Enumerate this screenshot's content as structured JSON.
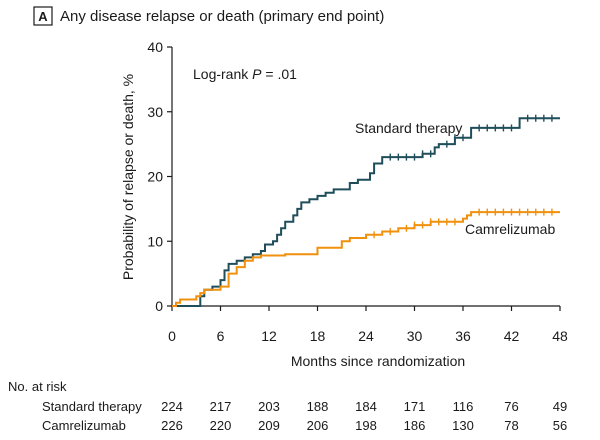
{
  "panel": {
    "letter": "A",
    "title": "Any disease relapse or death (primary end point)"
  },
  "chart_data": {
    "type": "line",
    "subtype": "kaplan-meier-cumulative-incidence",
    "title": "Any disease relapse or death (primary end point)",
    "xlabel": "Months since randomization",
    "ylabel": "Probability of relapse or death, %",
    "xlim": [
      0,
      48
    ],
    "ylim": [
      0,
      40
    ],
    "xticks": [
      0,
      6,
      12,
      18,
      24,
      30,
      36,
      42,
      48
    ],
    "yticks": [
      0,
      10,
      20,
      30,
      40
    ],
    "annotation": {
      "prefix": "Log-rank ",
      "italic": "P",
      "suffix": " = .01"
    },
    "series": [
      {
        "name": "Standard therapy",
        "color": "#1f4e5a",
        "steps": [
          [
            0,
            0
          ],
          [
            3,
            0
          ],
          [
            3.5,
            1.5
          ],
          [
            4,
            2.5
          ],
          [
            5,
            3
          ],
          [
            6,
            4
          ],
          [
            6.5,
            5.5
          ],
          [
            7,
            6.5
          ],
          [
            8,
            7
          ],
          [
            9,
            7.5
          ],
          [
            10,
            8
          ],
          [
            11,
            8.5
          ],
          [
            11.5,
            9.5
          ],
          [
            12.5,
            10
          ],
          [
            13,
            11
          ],
          [
            13.5,
            12
          ],
          [
            14,
            13
          ],
          [
            15,
            14
          ],
          [
            15.5,
            15
          ],
          [
            16,
            16
          ],
          [
            17,
            16.5
          ],
          [
            18,
            17
          ],
          [
            19,
            17.5
          ],
          [
            20,
            18
          ],
          [
            22,
            19
          ],
          [
            23,
            19.5
          ],
          [
            24.5,
            20.5
          ],
          [
            25,
            22
          ],
          [
            26,
            23
          ],
          [
            31,
            23.5
          ],
          [
            32.5,
            24.5
          ],
          [
            33,
            25
          ],
          [
            35,
            26
          ],
          [
            37,
            27.5
          ],
          [
            43,
            29
          ],
          [
            48,
            29
          ]
        ],
        "censor_times": [
          27,
          28,
          29,
          30,
          31,
          32,
          34,
          35,
          36,
          38,
          39,
          40,
          41,
          42,
          44,
          45,
          46,
          47
        ]
      },
      {
        "name": "Camrelizumab",
        "color": "#f0900d",
        "steps": [
          [
            0,
            0
          ],
          [
            0.5,
            0.5
          ],
          [
            1,
            1
          ],
          [
            3,
            1.5
          ],
          [
            3.5,
            2
          ],
          [
            4,
            2.5
          ],
          [
            6,
            3
          ],
          [
            7,
            5
          ],
          [
            8,
            6
          ],
          [
            9,
            7
          ],
          [
            10,
            7.5
          ],
          [
            11,
            7.8
          ],
          [
            14,
            8
          ],
          [
            18,
            9
          ],
          [
            21,
            10
          ],
          [
            22,
            10.5
          ],
          [
            24,
            11
          ],
          [
            26,
            11.5
          ],
          [
            28,
            12
          ],
          [
            30,
            12.5
          ],
          [
            32,
            13
          ],
          [
            36,
            13.5
          ],
          [
            36.5,
            14
          ],
          [
            37,
            14.5
          ],
          [
            48,
            14.5
          ]
        ],
        "censor_times": [
          25,
          27,
          29,
          30,
          31,
          32,
          33,
          34,
          35,
          38,
          39,
          40,
          41,
          42,
          43,
          44,
          45,
          46,
          47
        ]
      }
    ],
    "at_risk": {
      "heading": "No. at risk",
      "times": [
        0,
        6,
        12,
        18,
        24,
        30,
        36,
        42,
        48
      ],
      "rows": [
        {
          "label": "Standard therapy",
          "values": [
            224,
            217,
            203,
            188,
            184,
            171,
            116,
            76,
            49
          ]
        },
        {
          "label": "Camrelizumab",
          "values": [
            226,
            220,
            209,
            206,
            198,
            186,
            130,
            78,
            56
          ]
        }
      ]
    }
  }
}
